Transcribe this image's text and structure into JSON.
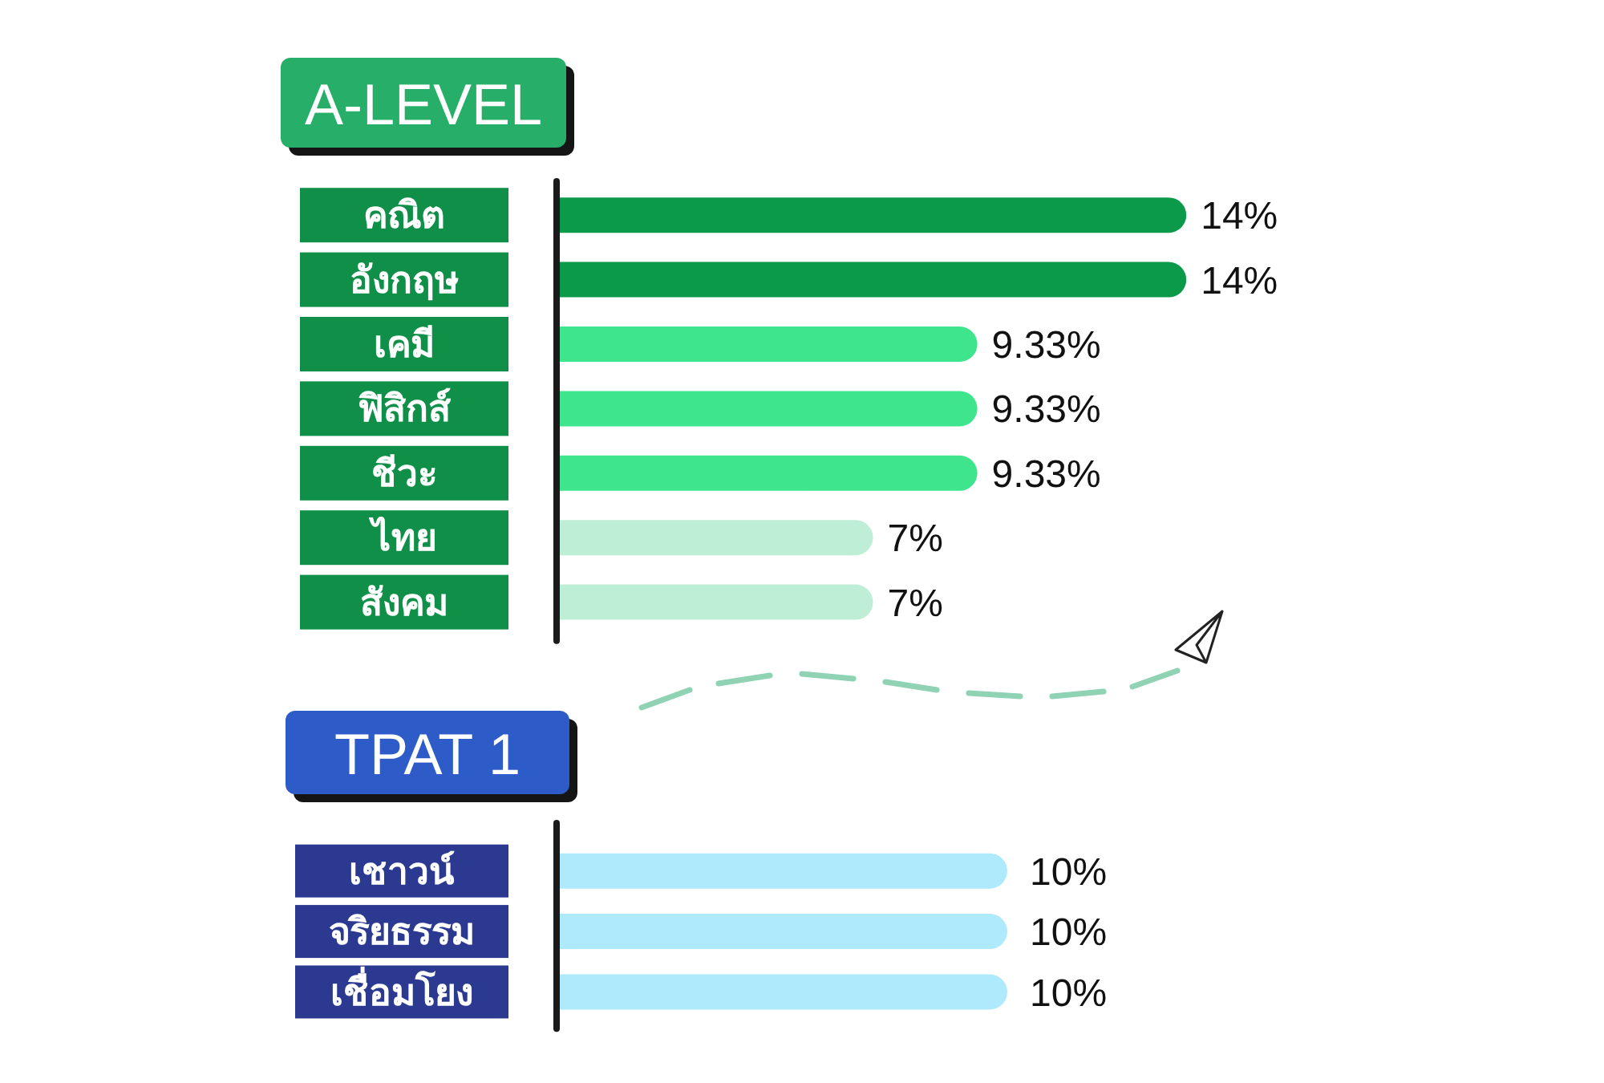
{
  "chart_data": [
    {
      "type": "bar",
      "orientation": "horizontal",
      "title": "A-LEVEL",
      "categories": [
        "คณิต",
        "อังกฤษ",
        "เคมี",
        "ฟิสิกส์",
        "ชีวะ",
        "ไทย",
        "สังคม"
      ],
      "values": [
        14,
        14,
        9.33,
        9.33,
        9.33,
        7,
        7
      ],
      "colors": [
        "#0a9a4a",
        "#0a9a4a",
        "#3ee58c",
        "#3ee58c",
        "#3ee58c",
        "#bfeed6",
        "#bfeed6"
      ],
      "value_labels": [
        "14%",
        "14%",
        "9.33%",
        "9.33%",
        "9.33%",
        "7%",
        "7%"
      ]
    },
    {
      "type": "bar",
      "orientation": "horizontal",
      "title": "TPAT 1",
      "categories": [
        "เชาวน์",
        "จริยธรรม",
        "เชื่อมโยง"
      ],
      "values": [
        10,
        10,
        10
      ],
      "colors": [
        "#aeeafc",
        "#aeeafc",
        "#aeeafc"
      ],
      "value_labels": [
        "10%",
        "10%",
        "10%"
      ]
    }
  ]
}
